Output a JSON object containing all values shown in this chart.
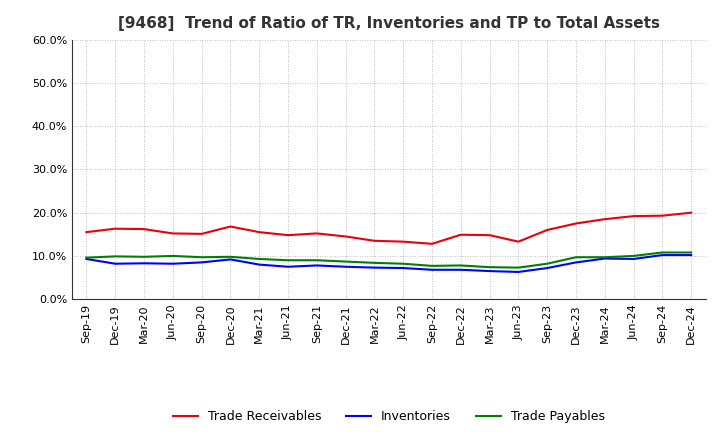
{
  "title": "[9468]  Trend of Ratio of TR, Inventories and TP to Total Assets",
  "x_labels": [
    "Sep-19",
    "Dec-19",
    "Mar-20",
    "Jun-20",
    "Sep-20",
    "Dec-20",
    "Mar-21",
    "Jun-21",
    "Sep-21",
    "Dec-21",
    "Mar-22",
    "Jun-22",
    "Sep-22",
    "Dec-22",
    "Mar-23",
    "Jun-23",
    "Sep-23",
    "Dec-23",
    "Mar-24",
    "Jun-24",
    "Sep-24",
    "Dec-24"
  ],
  "trade_receivables": [
    0.155,
    0.163,
    0.162,
    0.152,
    0.151,
    0.168,
    0.155,
    0.148,
    0.152,
    0.145,
    0.135,
    0.133,
    0.128,
    0.149,
    0.148,
    0.133,
    0.16,
    0.175,
    0.185,
    0.192,
    0.193,
    0.2
  ],
  "inventories": [
    0.093,
    0.082,
    0.083,
    0.082,
    0.085,
    0.092,
    0.08,
    0.075,
    0.078,
    0.075,
    0.073,
    0.072,
    0.068,
    0.068,
    0.065,
    0.063,
    0.072,
    0.085,
    0.094,
    0.093,
    0.102,
    0.102
  ],
  "trade_payables": [
    0.096,
    0.099,
    0.098,
    0.1,
    0.097,
    0.098,
    0.093,
    0.09,
    0.09,
    0.087,
    0.084,
    0.082,
    0.077,
    0.078,
    0.074,
    0.073,
    0.082,
    0.097,
    0.097,
    0.1,
    0.108,
    0.108
  ],
  "tr_color": "#e8000d",
  "inv_color": "#0000ff",
  "tp_color": "#008000",
  "ylim": [
    0.0,
    0.6
  ],
  "yticks": [
    0.0,
    0.1,
    0.2,
    0.3,
    0.4,
    0.5,
    0.6
  ],
  "legend_labels": [
    "Trade Receivables",
    "Inventories",
    "Trade Payables"
  ],
  "background_color": "#ffffff",
  "grid_color": "#aaaaaa",
  "title_color": "#333333",
  "title_fontsize": 11,
  "tick_fontsize": 8,
  "line_width": 1.5
}
